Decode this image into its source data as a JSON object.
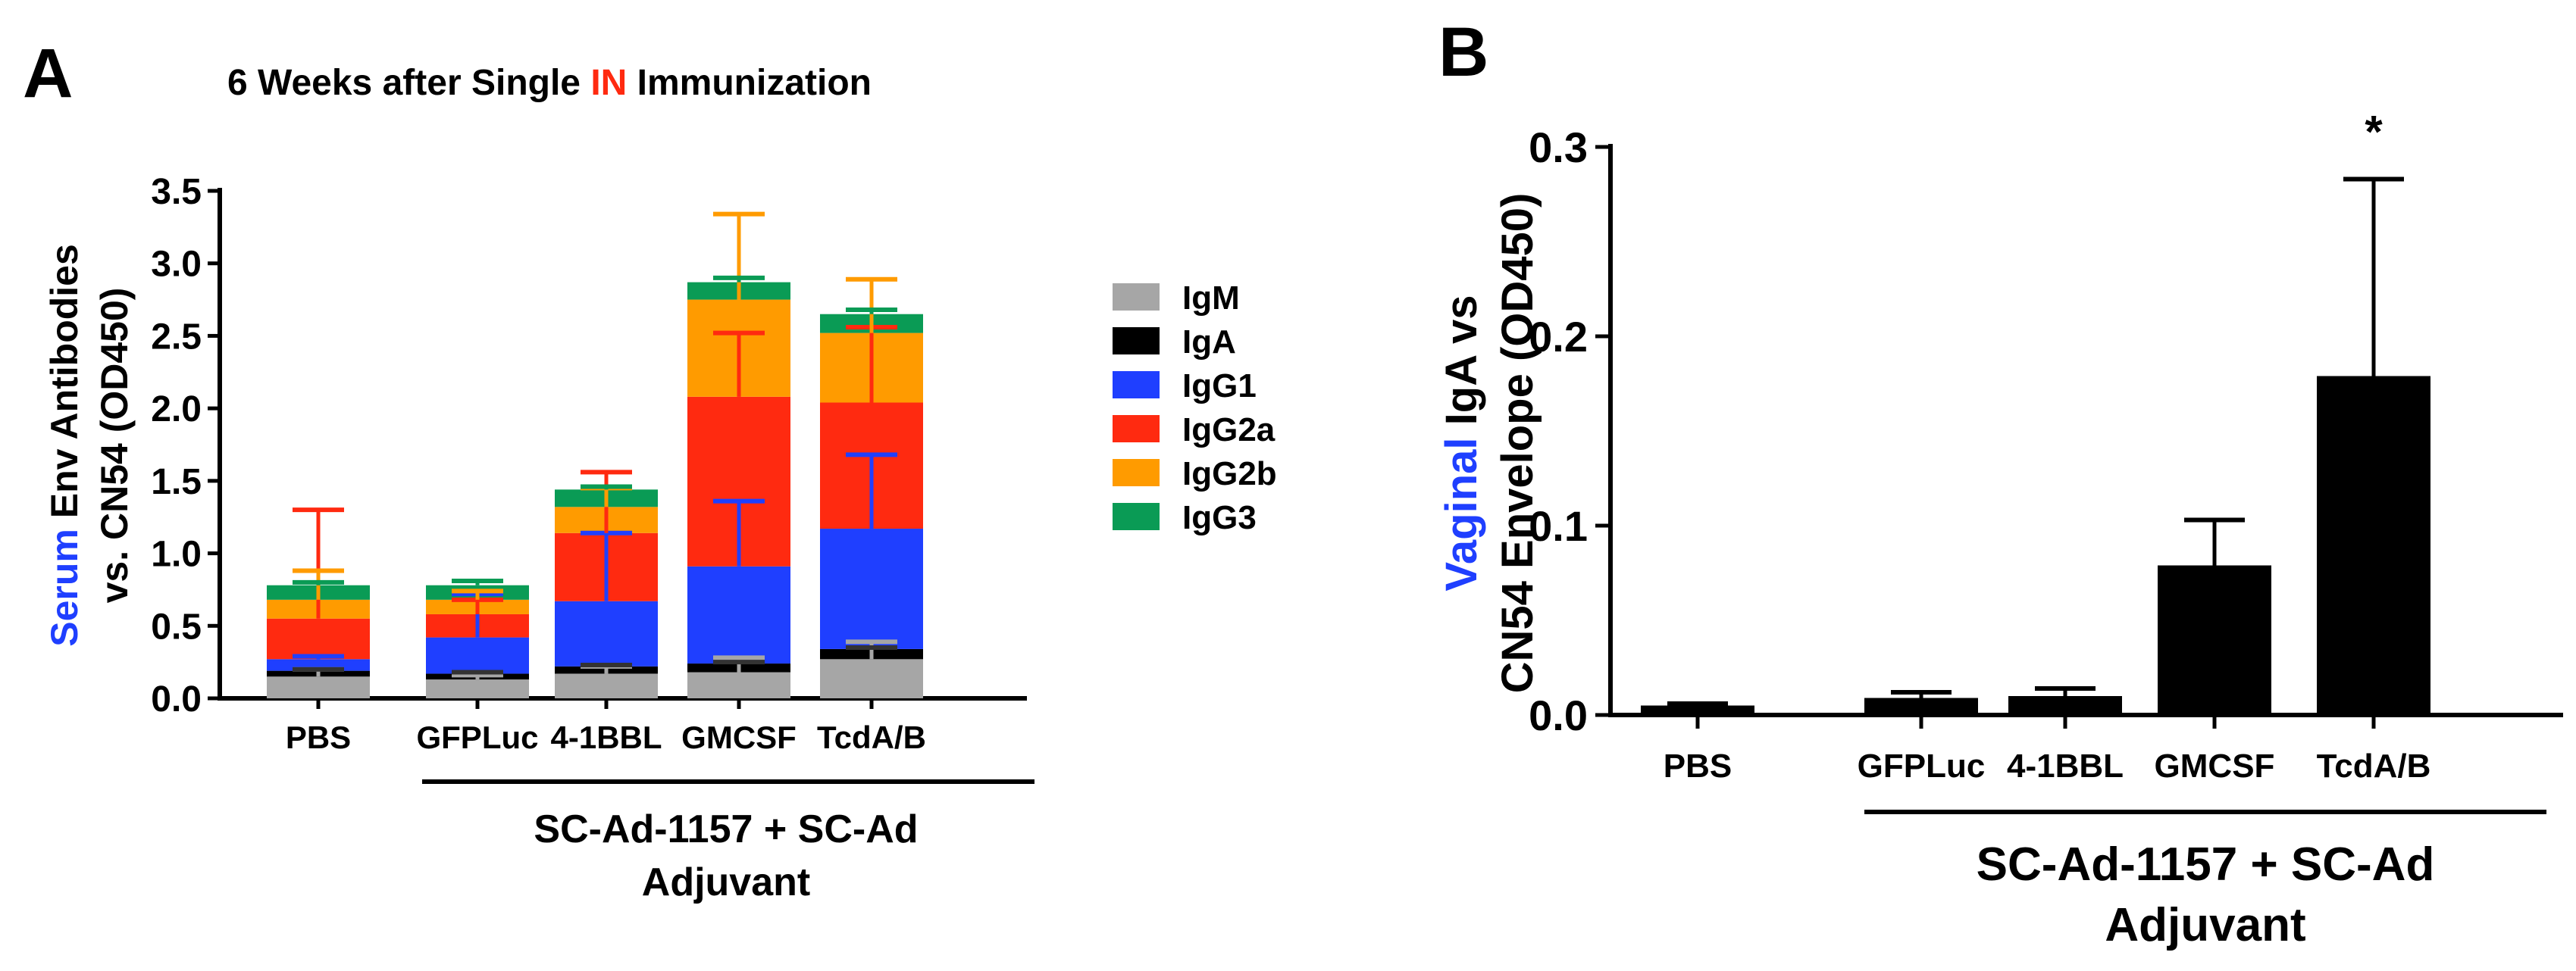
{
  "colors": {
    "IgM": "#a6a6a6",
    "IgA": "#000000",
    "IgG1": "#1f3fff",
    "IgG2a": "#ff2a10",
    "IgG2b": "#ff9b00",
    "IgG3": "#0a9b55",
    "title_highlight": "#ff2a10",
    "axis_highlight": "#1f3fff",
    "panel_b_bar": "#000000"
  },
  "chart_data": [
    {
      "type": "bar",
      "stacked": true,
      "panel_label": "A",
      "title": "6 Weeks after Single IN Immunization",
      "title_parts": [
        {
          "text": "6 Weeks after Single ",
          "highlight": false
        },
        {
          "text": "IN",
          "highlight": true
        },
        {
          "text": " Immunization",
          "highlight": false
        }
      ],
      "ylabel_parts": [
        {
          "text": "Serum",
          "highlight": true
        },
        {
          "text": " Env Antibodies",
          "highlight": false
        }
      ],
      "ylabel_line2": "vs. CN54 (OD450)",
      "ylim": [
        0,
        3.5
      ],
      "yticks": [
        "0.0",
        "0.5",
        "1.0",
        "1.5",
        "2.0",
        "2.5",
        "3.0",
        "3.5"
      ],
      "categories": [
        "PBS",
        "GFPLuc",
        "4-1BBL",
        "GMCSF",
        "TcdA/B"
      ],
      "group_label_line1": "SC-Ad-1157 + SC-Ad",
      "group_label_line2": "Adjuvant",
      "legend": [
        "IgM",
        "IgA",
        "IgG1",
        "IgG2a",
        "IgG2b",
        "IgG3"
      ],
      "legend_placement": "right",
      "series": [
        {
          "name": "IgM",
          "values": [
            0.15,
            0.13,
            0.17,
            0.18,
            0.27
          ],
          "errors": [
            0.05,
            0.03,
            0.05,
            0.1,
            0.12
          ]
        },
        {
          "name": "IgA",
          "values": [
            0.04,
            0.04,
            0.05,
            0.06,
            0.07
          ],
          "errors": [
            0.01,
            0.01,
            0.01,
            0.01,
            0.01
          ]
        },
        {
          "name": "IgG1",
          "values": [
            0.08,
            0.25,
            0.45,
            0.67,
            0.83
          ],
          "errors": [
            0.02,
            0.3,
            0.47,
            0.45,
            0.51
          ]
        },
        {
          "name": "IgG2a",
          "values": [
            0.28,
            0.16,
            0.47,
            1.17,
            0.87
          ],
          "errors": [
            0.75,
            0.1,
            0.42,
            0.44,
            0.52
          ]
        },
        {
          "name": "IgG2b",
          "values": [
            0.13,
            0.1,
            0.18,
            0.67,
            0.48
          ],
          "errors": [
            0.2,
            0.06,
            0.13,
            0.59,
            0.37
          ]
        },
        {
          "name": "IgG3",
          "values": [
            0.1,
            0.1,
            0.12,
            0.12,
            0.13
          ],
          "errors": [
            0.02,
            0.03,
            0.02,
            0.03,
            0.03
          ]
        }
      ]
    },
    {
      "type": "bar",
      "panel_label": "B",
      "ylabel_parts": [
        {
          "text": "Vaginal",
          "highlight": true
        },
        {
          "text": " IgA vs",
          "highlight": false
        }
      ],
      "ylabel_line2": "CN54 Envelope (OD450)",
      "ylim": [
        0,
        0.3
      ],
      "yticks": [
        "0.0",
        "0.1",
        "0.2",
        "0.3"
      ],
      "categories": [
        "PBS",
        "GFPLuc",
        "4-1BBL",
        "GMCSF",
        "TcdA/B"
      ],
      "group_label_line1": "SC-Ad-1157 + SC-Ad",
      "group_label_line2": "Adjuvant",
      "values": [
        0.005,
        0.009,
        0.01,
        0.079,
        0.179
      ],
      "errors": [
        0.001,
        0.003,
        0.004,
        0.024,
        0.104
      ],
      "annotations": [
        "",
        "",
        "",
        "",
        "*"
      ]
    }
  ]
}
